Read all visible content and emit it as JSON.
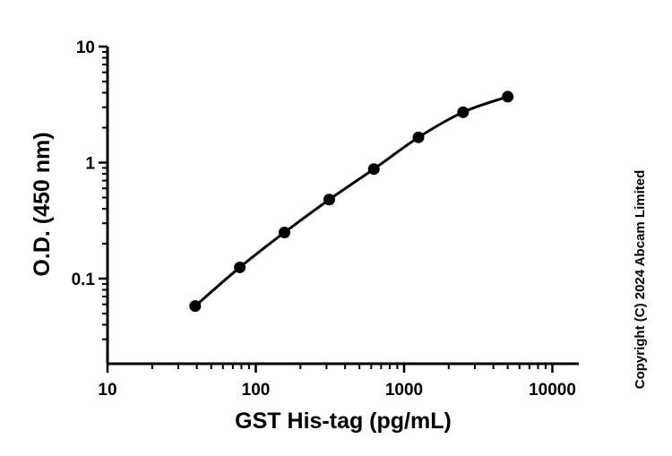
{
  "chart_data": {
    "type": "scatter",
    "x_scale": "log",
    "y_scale": "log",
    "xlabel": "GST His-tag (pg/mL)",
    "ylabel": "O.D. (450 nm)",
    "xlim": [
      10,
      15000
    ],
    "ylim": [
      0.03,
      10
    ],
    "x_ticks": [
      10,
      100,
      1000,
      10000
    ],
    "x_tick_labels": [
      "10",
      "100",
      "1000",
      "10000"
    ],
    "y_ticks": [
      0.1,
      1,
      10
    ],
    "y_tick_labels": [
      "0.1",
      "1",
      "10"
    ],
    "series": [
      {
        "x": [
          39,
          78,
          156,
          313,
          625,
          1250,
          2500,
          5000
        ],
        "y": [
          0.058,
          0.125,
          0.25,
          0.48,
          0.88,
          1.65,
          2.72,
          3.7
        ],
        "fit_curve": true
      }
    ],
    "grid": false,
    "legend": "none",
    "color": "#000000"
  },
  "copyright": "Copyright (C) 2024 Abcam Limited"
}
